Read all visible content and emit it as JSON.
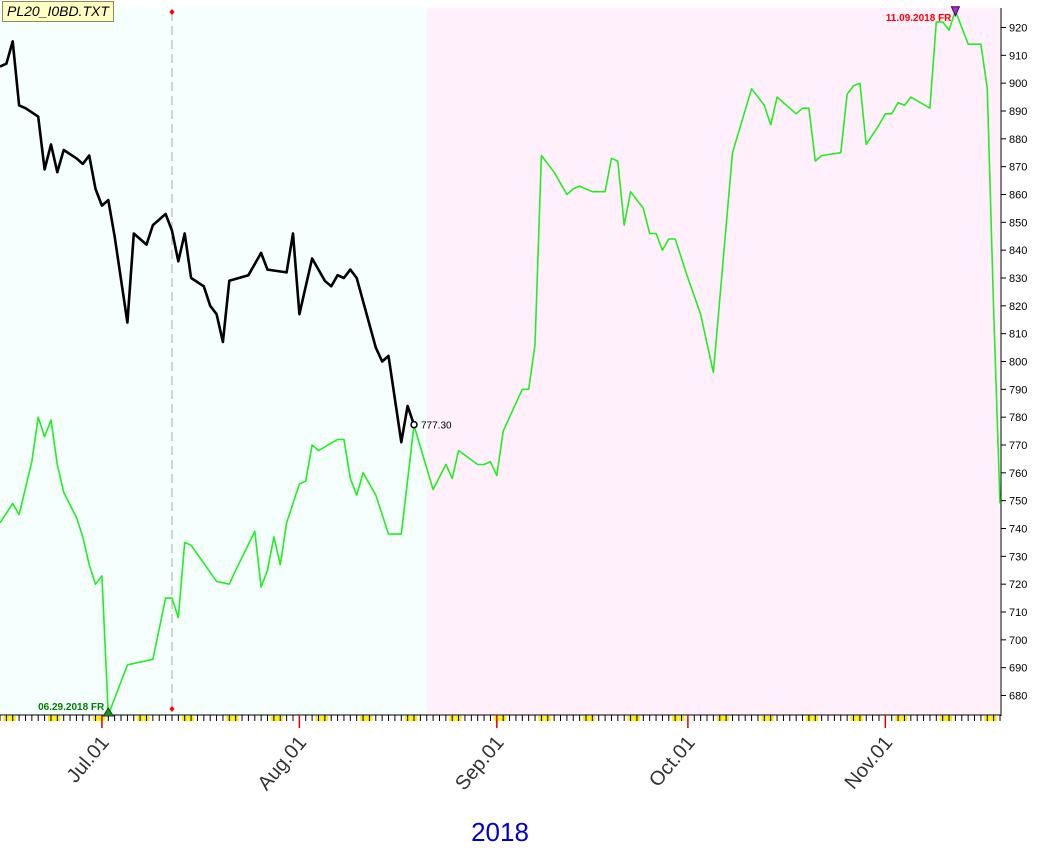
{
  "colors": {
    "history_region": "#f5fffd",
    "forecast_region": "#fff0fb",
    "green_line": "#22ee22",
    "black_line": "#000000",
    "low_label": "#008000",
    "high_label": "#ff0000",
    "year_label": "#0000cc",
    "tick_yellow": "#ffee00"
  },
  "chart_data": {
    "type": "line",
    "title": "PL20_I0BD.TXT",
    "year_label": "2018",
    "y_axis": {
      "position": "right",
      "ylim": [
        673,
        927
      ],
      "ticks": [
        680,
        690,
        700,
        710,
        720,
        730,
        740,
        750,
        760,
        770,
        780,
        790,
        800,
        810,
        820,
        830,
        840,
        850,
        860,
        870,
        880,
        890,
        900,
        910,
        920
      ]
    },
    "x_axis": {
      "xlim": [
        "2018-06-15",
        "2018-11-19"
      ],
      "month_ticks": [
        {
          "date": "2018-07-01",
          "label": "Jul.01"
        },
        {
          "date": "2018-08-01",
          "label": "Aug.01"
        },
        {
          "date": "2018-09-01",
          "label": "Sep.01"
        },
        {
          "date": "2018-10-01",
          "label": "Oct.01"
        },
        {
          "date": "2018-11-01",
          "label": "Nov.01"
        }
      ]
    },
    "regions": [
      {
        "name": "history",
        "from": "2018-06-15",
        "to": "2018-08-21"
      },
      {
        "name": "forecast",
        "from": "2018-08-21",
        "to": "2018-11-19"
      }
    ],
    "marker_line_date": "2018-07-12",
    "series": [
      {
        "key": "black",
        "points": [
          [
            "2018-06-15",
            906
          ],
          [
            "2018-06-16",
            907
          ],
          [
            "2018-06-17",
            915
          ],
          [
            "2018-06-18",
            892
          ],
          [
            "2018-06-19",
            891
          ],
          [
            "2018-06-21",
            888
          ],
          [
            "2018-06-22",
            869
          ],
          [
            "2018-06-23",
            878
          ],
          [
            "2018-06-24",
            868
          ],
          [
            "2018-06-25",
            876
          ],
          [
            "2018-06-27",
            873
          ],
          [
            "2018-06-28",
            871
          ],
          [
            "2018-06-29",
            874
          ],
          [
            "2018-06-30",
            862
          ],
          [
            "2018-07-01",
            856
          ],
          [
            "2018-07-02",
            858
          ],
          [
            "2018-07-03",
            845
          ],
          [
            "2018-07-05",
            814
          ],
          [
            "2018-07-06",
            846
          ],
          [
            "2018-07-08",
            842
          ],
          [
            "2018-07-09",
            849
          ],
          [
            "2018-07-11",
            853
          ],
          [
            "2018-07-12",
            847
          ],
          [
            "2018-07-13",
            836
          ],
          [
            "2018-07-14",
            846
          ],
          [
            "2018-07-15",
            830
          ],
          [
            "2018-07-17",
            827
          ],
          [
            "2018-07-18",
            820
          ],
          [
            "2018-07-19",
            817
          ],
          [
            "2018-07-20",
            807
          ],
          [
            "2018-07-21",
            829
          ],
          [
            "2018-07-24",
            831
          ],
          [
            "2018-07-26",
            839
          ],
          [
            "2018-07-27",
            833
          ],
          [
            "2018-07-30",
            832
          ],
          [
            "2018-07-31",
            846
          ],
          [
            "2018-08-01",
            817
          ],
          [
            "2018-08-03",
            837
          ],
          [
            "2018-08-04",
            833
          ],
          [
            "2018-08-05",
            829
          ],
          [
            "2018-08-06",
            827
          ],
          [
            "2018-08-07",
            831
          ],
          [
            "2018-08-08",
            830
          ],
          [
            "2018-08-09",
            833
          ],
          [
            "2018-08-10",
            830
          ],
          [
            "2018-08-13",
            805
          ],
          [
            "2018-08-14",
            800
          ],
          [
            "2018-08-15",
            802
          ],
          [
            "2018-08-17",
            771
          ],
          [
            "2018-08-18",
            784
          ],
          [
            "2018-08-19",
            777.3
          ]
        ]
      },
      {
        "key": "green",
        "points": [
          [
            "2018-06-15",
            742
          ],
          [
            "2018-06-17",
            749
          ],
          [
            "2018-06-18",
            745
          ],
          [
            "2018-06-20",
            764
          ],
          [
            "2018-06-21",
            780
          ],
          [
            "2018-06-22",
            773
          ],
          [
            "2018-06-23",
            779
          ],
          [
            "2018-06-24",
            763
          ],
          [
            "2018-06-25",
            753
          ],
          [
            "2018-06-27",
            744
          ],
          [
            "2018-06-28",
            737
          ],
          [
            "2018-06-29",
            727
          ],
          [
            "2018-06-30",
            720
          ],
          [
            "2018-07-01",
            723
          ],
          [
            "2018-07-02",
            673
          ],
          [
            "2018-07-05",
            691
          ],
          [
            "2018-07-09",
            693
          ],
          [
            "2018-07-11",
            715
          ],
          [
            "2018-07-12",
            715
          ],
          [
            "2018-07-13",
            708
          ],
          [
            "2018-07-14",
            735
          ],
          [
            "2018-07-15",
            734
          ],
          [
            "2018-07-19",
            721
          ],
          [
            "2018-07-21",
            720
          ],
          [
            "2018-07-22",
            725
          ],
          [
            "2018-07-25",
            739
          ],
          [
            "2018-07-26",
            719
          ],
          [
            "2018-07-27",
            725
          ],
          [
            "2018-07-28",
            737
          ],
          [
            "2018-07-29",
            727
          ],
          [
            "2018-07-30",
            742
          ],
          [
            "2018-08-01",
            756
          ],
          [
            "2018-08-02",
            757
          ],
          [
            "2018-08-03",
            770
          ],
          [
            "2018-08-04",
            768
          ],
          [
            "2018-08-07",
            772
          ],
          [
            "2018-08-08",
            772
          ],
          [
            "2018-08-09",
            758
          ],
          [
            "2018-08-10",
            752
          ],
          [
            "2018-08-11",
            760
          ],
          [
            "2018-08-13",
            752
          ],
          [
            "2018-08-15",
            738
          ],
          [
            "2018-08-17",
            738
          ],
          [
            "2018-08-19",
            777
          ],
          [
            "2018-08-22",
            754
          ],
          [
            "2018-08-24",
            763
          ],
          [
            "2018-08-25",
            758
          ],
          [
            "2018-08-26",
            768
          ],
          [
            "2018-08-29",
            763
          ],
          [
            "2018-08-30",
            763
          ],
          [
            "2018-08-31",
            764
          ],
          [
            "2018-09-01",
            759
          ],
          [
            "2018-09-02",
            775
          ],
          [
            "2018-09-05",
            790
          ],
          [
            "2018-09-06",
            790
          ],
          [
            "2018-09-07",
            806
          ],
          [
            "2018-09-08",
            874
          ],
          [
            "2018-09-10",
            868
          ],
          [
            "2018-09-12",
            860
          ],
          [
            "2018-09-13",
            862
          ],
          [
            "2018-09-14",
            863
          ],
          [
            "2018-09-16",
            861
          ],
          [
            "2018-09-18",
            861
          ],
          [
            "2018-09-19",
            873
          ],
          [
            "2018-09-20",
            872
          ],
          [
            "2018-09-21",
            849
          ],
          [
            "2018-09-22",
            861
          ],
          [
            "2018-09-24",
            855
          ],
          [
            "2018-09-25",
            846
          ],
          [
            "2018-09-26",
            846
          ],
          [
            "2018-09-27",
            840
          ],
          [
            "2018-09-28",
            844
          ],
          [
            "2018-09-29",
            844
          ],
          [
            "2018-10-01",
            830
          ],
          [
            "2018-10-03",
            817
          ],
          [
            "2018-10-05",
            796
          ],
          [
            "2018-10-08",
            875
          ],
          [
            "2018-10-11",
            898
          ],
          [
            "2018-10-13",
            892
          ],
          [
            "2018-10-14",
            885
          ],
          [
            "2018-10-15",
            895
          ],
          [
            "2018-10-16",
            893
          ],
          [
            "2018-10-18",
            889
          ],
          [
            "2018-10-19",
            891
          ],
          [
            "2018-10-20",
            891
          ],
          [
            "2018-10-21",
            872
          ],
          [
            "2018-10-22",
            874
          ],
          [
            "2018-10-25",
            875
          ],
          [
            "2018-10-26",
            896
          ],
          [
            "2018-10-27",
            899
          ],
          [
            "2018-10-28",
            900
          ],
          [
            "2018-10-29",
            878
          ],
          [
            "2018-10-31",
            885
          ],
          [
            "2018-11-01",
            889
          ],
          [
            "2018-11-02",
            889
          ],
          [
            "2018-11-03",
            893
          ],
          [
            "2018-11-04",
            892
          ],
          [
            "2018-11-05",
            895
          ],
          [
            "2018-11-08",
            891
          ],
          [
            "2018-11-09",
            922
          ],
          [
            "2018-11-10",
            922
          ],
          [
            "2018-11-11",
            919
          ],
          [
            "2018-11-12",
            926
          ],
          [
            "2018-11-14",
            914
          ],
          [
            "2018-11-16",
            914
          ],
          [
            "2018-11-17",
            898
          ],
          [
            "2018-11-18",
            819
          ],
          [
            "2018-11-19",
            749
          ]
        ]
      }
    ],
    "annotations": [
      {
        "kind": "last_value",
        "date": "2018-08-19",
        "value": 777.3,
        "text": "777.30"
      },
      {
        "kind": "low",
        "date": "2018-07-02",
        "value": 673,
        "text": "06.29.2018 FR"
      },
      {
        "kind": "high",
        "date": "2018-11-12",
        "value": 926,
        "text": "11.09.2018 FR"
      }
    ]
  }
}
